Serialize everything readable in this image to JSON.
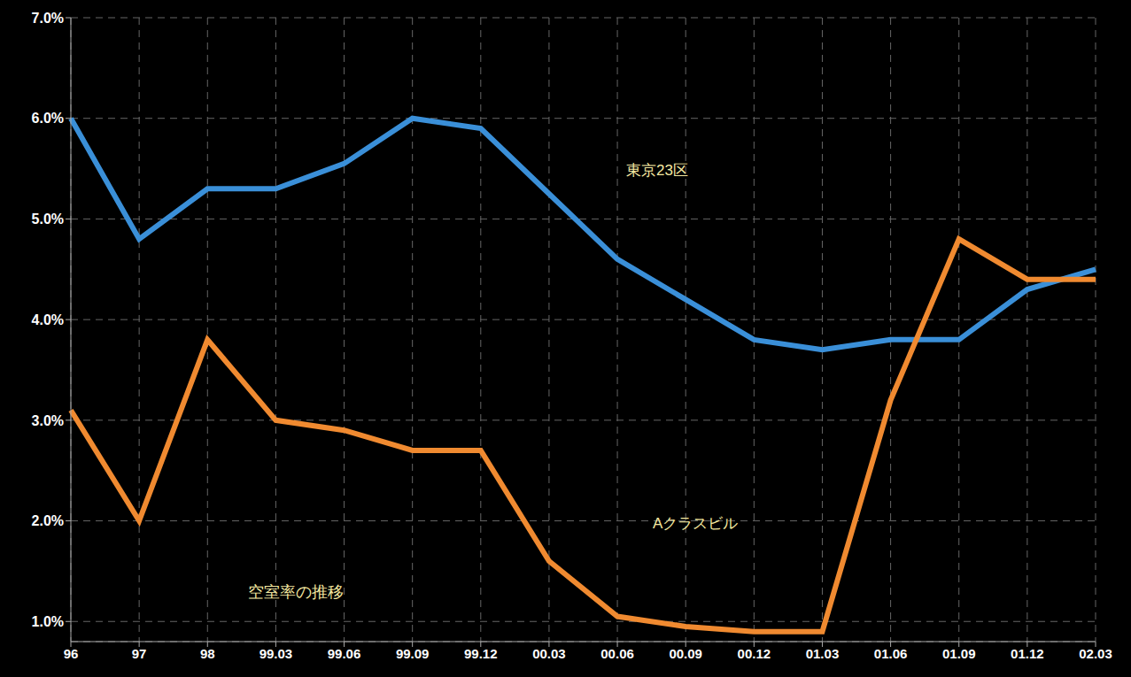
{
  "chart_data": {
    "type": "line",
    "title": "空室率の推移",
    "categories": [
      "96",
      "97",
      "98",
      "99.03",
      "99.06",
      "99.09",
      "99.12",
      "00.03",
      "00.06",
      "00.09",
      "00.12",
      "01.03",
      "01.06",
      "01.09",
      "01.12",
      "02.03"
    ],
    "series": [
      {
        "name": "東京23区",
        "color": "#3a8fd8",
        "values": [
          6.0,
          4.8,
          5.3,
          5.3,
          5.55,
          6.0,
          5.9,
          5.25,
          4.6,
          4.2,
          3.8,
          3.7,
          3.8,
          3.8,
          4.3,
          4.5
        ]
      },
      {
        "name": "Aクラスビル",
        "color": "#f08a30",
        "values": [
          3.1,
          2.0,
          3.8,
          3.0,
          2.9,
          2.7,
          2.7,
          1.6,
          1.05,
          0.95,
          0.9,
          0.9,
          3.2,
          4.8,
          4.4,
          4.4
        ]
      }
    ],
    "ylim": [
      0.8,
      7.0
    ],
    "yticks": [
      {
        "value": 1,
        "label": "1.0%"
      },
      {
        "value": 2,
        "label": "2.0%"
      },
      {
        "value": 3,
        "label": "3.0%"
      },
      {
        "value": 4,
        "label": "4.0%"
      },
      {
        "value": 5,
        "label": "5.0%"
      },
      {
        "value": 6,
        "label": "6.0%"
      },
      {
        "value": 7,
        "label": "7.0%"
      }
    ],
    "grid": true
  }
}
